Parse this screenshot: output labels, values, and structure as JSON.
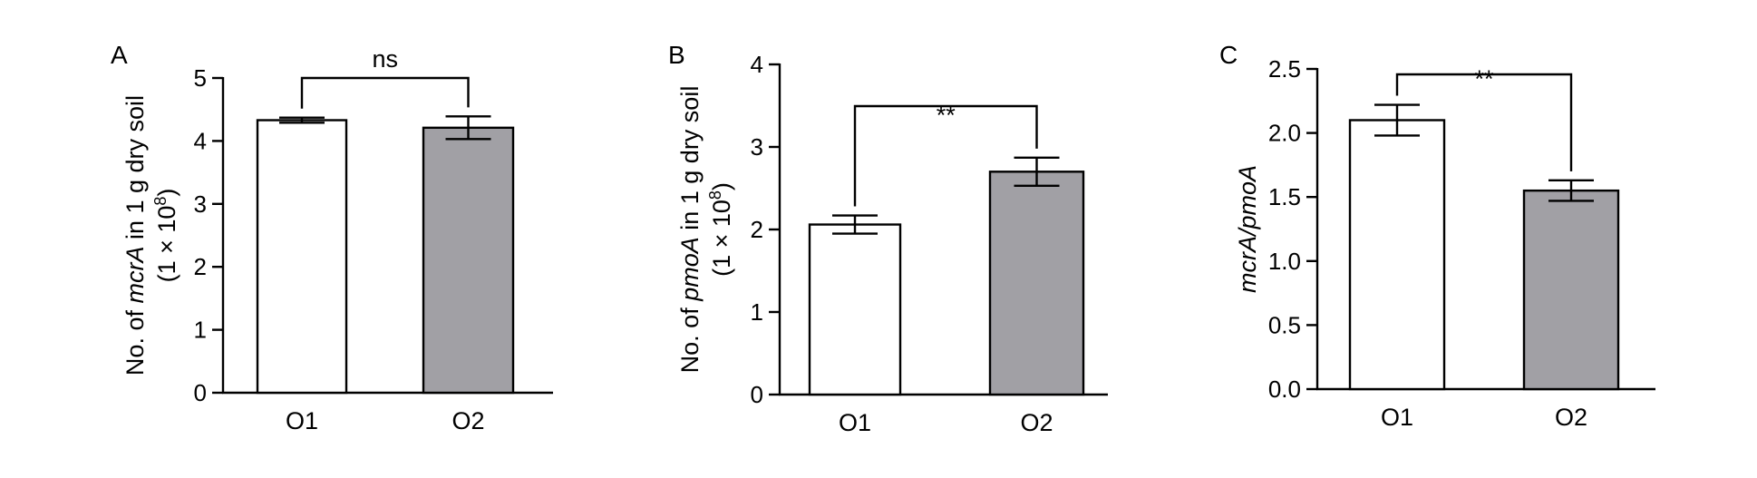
{
  "chart_data": [
    {
      "type": "bar",
      "panel_label": "A",
      "categories": [
        "O1",
        "O2"
      ],
      "values": [
        4.33,
        4.21
      ],
      "errors": [
        0.04,
        0.18
      ],
      "bar_colors": [
        "#ffffff",
        "#a1a0a5"
      ],
      "ylim": [
        0,
        5
      ],
      "yticks": [
        0,
        1,
        2,
        3,
        4,
        5
      ],
      "ytick_labels": [
        "0",
        "1",
        "2",
        "3",
        "4",
        "5"
      ],
      "ylabel": {
        "line1_pre": "No. of ",
        "line1_ital": "mcrA",
        "line1_post": " in 1 g dry soil",
        "line2_pre": "(1 × 10",
        "line2_sup": "8",
        "line2_post": ")"
      },
      "significance": "ns",
      "grid": false
    },
    {
      "type": "bar",
      "panel_label": "B",
      "categories": [
        "O1",
        "O2"
      ],
      "values": [
        2.06,
        2.7
      ],
      "errors": [
        0.11,
        0.17
      ],
      "bar_colors": [
        "#ffffff",
        "#a1a0a5"
      ],
      "ylim": [
        0,
        4
      ],
      "yticks": [
        0,
        1,
        2,
        3,
        4
      ],
      "ytick_labels": [
        "0",
        "1",
        "2",
        "3",
        "4"
      ],
      "ylabel": {
        "line1_pre": "No. of ",
        "line1_ital": "pmoA",
        "line1_post": " in 1 g dry soil",
        "line2_pre": "(1 × 10",
        "line2_sup": "8",
        "line2_post": ")"
      },
      "significance": "**",
      "grid": false
    },
    {
      "type": "bar",
      "panel_label": "C",
      "categories": [
        "O1",
        "O2"
      ],
      "values": [
        2.1,
        1.55
      ],
      "errors": [
        0.12,
        0.08
      ],
      "bar_colors": [
        "#ffffff",
        "#a1a0a5"
      ],
      "ylim": [
        0,
        2.5
      ],
      "yticks": [
        0,
        0.5,
        1.0,
        1.5,
        2.0,
        2.5
      ],
      "ytick_labels": [
        "0.0",
        "0.5",
        "1.0",
        "1.5",
        "2.0",
        "2.5"
      ],
      "ylabel": {
        "ital": "mcrA/pmoA"
      },
      "significance": "**",
      "grid": false
    }
  ]
}
